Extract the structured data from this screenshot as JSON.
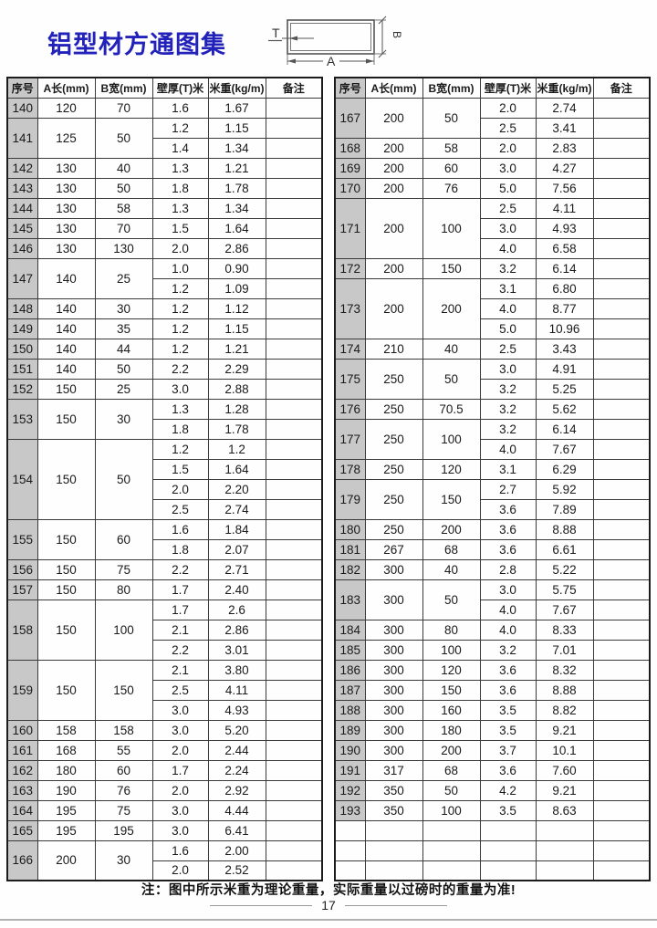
{
  "title": "铝型材方通图集",
  "diagram": {
    "label_t": "T",
    "label_a": "A",
    "label_b": "B"
  },
  "table_headers": [
    "序号",
    "A长(mm)",
    "B宽(mm)",
    "壁厚(T)米",
    "米重(kg/m)",
    "备注"
  ],
  "left_table": [
    {
      "no": "140",
      "a": "120",
      "b": "70",
      "specs": [
        {
          "t": "1.6",
          "w": "1.67"
        }
      ]
    },
    {
      "no": "141",
      "a": "125",
      "b": "50",
      "specs": [
        {
          "t": "1.2",
          "w": "1.15"
        },
        {
          "t": "1.4",
          "w": "1.34"
        }
      ]
    },
    {
      "no": "142",
      "a": "130",
      "b": "40",
      "specs": [
        {
          "t": "1.3",
          "w": "1.21"
        }
      ]
    },
    {
      "no": "143",
      "a": "130",
      "b": "50",
      "specs": [
        {
          "t": "1.8",
          "w": "1.78"
        }
      ]
    },
    {
      "no": "144",
      "a": "130",
      "b": "58",
      "specs": [
        {
          "t": "1.3",
          "w": "1.34"
        }
      ]
    },
    {
      "no": "145",
      "a": "130",
      "b": "70",
      "specs": [
        {
          "t": "1.5",
          "w": "1.64"
        }
      ]
    },
    {
      "no": "146",
      "a": "130",
      "b": "130",
      "specs": [
        {
          "t": "2.0",
          "w": "2.86"
        }
      ]
    },
    {
      "no": "147",
      "a": "140",
      "b": "25",
      "specs": [
        {
          "t": "1.0",
          "w": "0.90"
        },
        {
          "t": "1.2",
          "w": "1.09"
        }
      ]
    },
    {
      "no": "148",
      "a": "140",
      "b": "30",
      "specs": [
        {
          "t": "1.2",
          "w": "1.12"
        }
      ]
    },
    {
      "no": "149",
      "a": "140",
      "b": "35",
      "specs": [
        {
          "t": "1.2",
          "w": "1.15"
        }
      ]
    },
    {
      "no": "150",
      "a": "140",
      "b": "44",
      "specs": [
        {
          "t": "1.2",
          "w": "1.21"
        }
      ]
    },
    {
      "no": "151",
      "a": "140",
      "b": "50",
      "specs": [
        {
          "t": "2.2",
          "w": "2.29"
        }
      ]
    },
    {
      "no": "152",
      "a": "150",
      "b": "25",
      "specs": [
        {
          "t": "3.0",
          "w": "2.88"
        }
      ]
    },
    {
      "no": "153",
      "a": "150",
      "b": "30",
      "specs": [
        {
          "t": "1.3",
          "w": "1.28"
        },
        {
          "t": "1.8",
          "w": "1.78"
        }
      ]
    },
    {
      "no": "154",
      "a": "150",
      "b": "50",
      "specs": [
        {
          "t": "1.2",
          "w": "1.2"
        },
        {
          "t": "1.5",
          "w": "1.64"
        },
        {
          "t": "2.0",
          "w": "2.20"
        },
        {
          "t": "2.5",
          "w": "2.74"
        }
      ]
    },
    {
      "no": "155",
      "a": "150",
      "b": "60",
      "specs": [
        {
          "t": "1.6",
          "w": "1.84"
        },
        {
          "t": "1.8",
          "w": "2.07"
        }
      ]
    },
    {
      "no": "156",
      "a": "150",
      "b": "75",
      "specs": [
        {
          "t": "2.2",
          "w": "2.71"
        }
      ]
    },
    {
      "no": "157",
      "a": "150",
      "b": "80",
      "specs": [
        {
          "t": "1.7",
          "w": "2.40"
        }
      ]
    },
    {
      "no": "158",
      "a": "150",
      "b": "100",
      "specs": [
        {
          "t": "1.7",
          "w": "2.6"
        },
        {
          "t": "2.1",
          "w": "2.86"
        },
        {
          "t": "2.2",
          "w": "3.01"
        }
      ]
    },
    {
      "no": "159",
      "a": "150",
      "b": "150",
      "specs": [
        {
          "t": "2.1",
          "w": "3.80"
        },
        {
          "t": "2.5",
          "w": "4.11"
        },
        {
          "t": "3.0",
          "w": "4.93"
        }
      ]
    },
    {
      "no": "160",
      "a": "158",
      "b": "158",
      "specs": [
        {
          "t": "3.0",
          "w": "5.20"
        }
      ]
    },
    {
      "no": "161",
      "a": "168",
      "b": "55",
      "specs": [
        {
          "t": "2.0",
          "w": "2.44"
        }
      ]
    },
    {
      "no": "162",
      "a": "180",
      "b": "60",
      "specs": [
        {
          "t": "1.7",
          "w": "2.24"
        }
      ]
    },
    {
      "no": "163",
      "a": "190",
      "b": "76",
      "specs": [
        {
          "t": "2.0",
          "w": "2.92"
        }
      ]
    },
    {
      "no": "164",
      "a": "195",
      "b": "75",
      "specs": [
        {
          "t": "3.0",
          "w": "4.44"
        }
      ]
    },
    {
      "no": "165",
      "a": "195",
      "b": "195",
      "specs": [
        {
          "t": "3.0",
          "w": "6.41"
        }
      ]
    },
    {
      "no": "166",
      "a": "200",
      "b": "30",
      "specs": [
        {
          "t": "1.6",
          "w": "2.00"
        },
        {
          "t": "2.0",
          "w": "2.52"
        }
      ]
    }
  ],
  "right_table": [
    {
      "no": "167",
      "a": "200",
      "b": "50",
      "specs": [
        {
          "t": "2.0",
          "w": "2.74"
        },
        {
          "t": "2.5",
          "w": "3.41"
        }
      ]
    },
    {
      "no": "168",
      "a": "200",
      "b": "58",
      "specs": [
        {
          "t": "2.0",
          "w": "2.83"
        }
      ]
    },
    {
      "no": "169",
      "a": "200",
      "b": "60",
      "specs": [
        {
          "t": "3.0",
          "w": "4.27"
        }
      ]
    },
    {
      "no": "170",
      "a": "200",
      "b": "76",
      "specs": [
        {
          "t": "5.0",
          "w": "7.56"
        }
      ]
    },
    {
      "no": "171",
      "a": "200",
      "b": "100",
      "specs": [
        {
          "t": "2.5",
          "w": "4.11"
        },
        {
          "t": "3.0",
          "w": "4.93"
        },
        {
          "t": "4.0",
          "w": "6.58"
        }
      ]
    },
    {
      "no": "172",
      "a": "200",
      "b": "150",
      "specs": [
        {
          "t": "3.2",
          "w": "6.14"
        }
      ]
    },
    {
      "no": "173",
      "a": "200",
      "b": "200",
      "specs": [
        {
          "t": "3.1",
          "w": "6.80"
        },
        {
          "t": "4.0",
          "w": "8.77"
        },
        {
          "t": "5.0",
          "w": "10.96"
        }
      ]
    },
    {
      "no": "174",
      "a": "210",
      "b": "40",
      "specs": [
        {
          "t": "2.5",
          "w": "3.43"
        }
      ]
    },
    {
      "no": "175",
      "a": "250",
      "b": "50",
      "specs": [
        {
          "t": "3.0",
          "w": "4.91"
        },
        {
          "t": "3.2",
          "w": "5.25"
        }
      ]
    },
    {
      "no": "176",
      "a": "250",
      "b": "70.5",
      "specs": [
        {
          "t": "3.2",
          "w": "5.62"
        }
      ]
    },
    {
      "no": "177",
      "a": "250",
      "b": "100",
      "specs": [
        {
          "t": "3.2",
          "w": "6.14"
        },
        {
          "t": "4.0",
          "w": "7.67"
        }
      ]
    },
    {
      "no": "178",
      "a": "250",
      "b": "120",
      "specs": [
        {
          "t": "3.1",
          "w": "6.29"
        }
      ]
    },
    {
      "no": "179",
      "a": "250",
      "b": "150",
      "specs": [
        {
          "t": "2.7",
          "w": "5.92"
        },
        {
          "t": "3.6",
          "w": "7.89"
        }
      ]
    },
    {
      "no": "180",
      "a": "250",
      "b": "200",
      "specs": [
        {
          "t": "3.6",
          "w": "8.88"
        }
      ]
    },
    {
      "no": "181",
      "a": "267",
      "b": "68",
      "specs": [
        {
          "t": "3.6",
          "w": "6.61"
        }
      ]
    },
    {
      "no": "182",
      "a": "300",
      "b": "40",
      "specs": [
        {
          "t": "2.8",
          "w": "5.22"
        }
      ]
    },
    {
      "no": "183",
      "a": "300",
      "b": "50",
      "specs": [
        {
          "t": "3.0",
          "w": "5.75"
        },
        {
          "t": "4.0",
          "w": "7.67"
        }
      ]
    },
    {
      "no": "184",
      "a": "300",
      "b": "80",
      "specs": [
        {
          "t": "4.0",
          "w": "8.33"
        }
      ]
    },
    {
      "no": "185",
      "a": "300",
      "b": "100",
      "specs": [
        {
          "t": "3.2",
          "w": "7.01"
        }
      ]
    },
    {
      "no": "186",
      "a": "300",
      "b": "120",
      "specs": [
        {
          "t": "3.6",
          "w": "8.32"
        }
      ]
    },
    {
      "no": "187",
      "a": "300",
      "b": "150",
      "specs": [
        {
          "t": "3.6",
          "w": "8.88"
        }
      ]
    },
    {
      "no": "188",
      "a": "300",
      "b": "160",
      "specs": [
        {
          "t": "3.5",
          "w": "8.82"
        }
      ]
    },
    {
      "no": "189",
      "a": "300",
      "b": "180",
      "specs": [
        {
          "t": "3.5",
          "w": "9.21"
        }
      ]
    },
    {
      "no": "190",
      "a": "300",
      "b": "200",
      "specs": [
        {
          "t": "3.7",
          "w": "10.1"
        }
      ]
    },
    {
      "no": "191",
      "a": "317",
      "b": "68",
      "specs": [
        {
          "t": "3.6",
          "w": "7.60"
        }
      ]
    },
    {
      "no": "192",
      "a": "350",
      "b": "50",
      "specs": [
        {
          "t": "4.2",
          "w": "9.21"
        }
      ]
    },
    {
      "no": "193",
      "a": "350",
      "b": "100",
      "specs": [
        {
          "t": "3.5",
          "w": "8.63"
        }
      ]
    }
  ],
  "right_table_empty_rows": 3,
  "footer": {
    "note": "注：图中所示米重为理论重量，实际重量以过磅时的重量为准!",
    "page_number": "17"
  },
  "colors": {
    "title_blue": "#2222bb",
    "serial_bg": "#c8c8c8",
    "grid_border": "#3a3a3a",
    "outer_border": "#1c1c1c",
    "footer_rule": "#999999"
  }
}
